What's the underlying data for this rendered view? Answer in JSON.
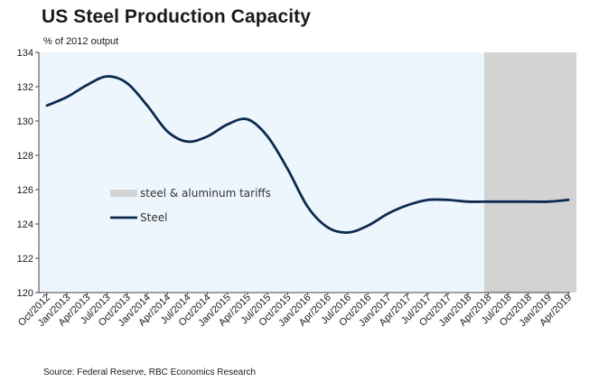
{
  "chart_data": {
    "type": "line",
    "title": "US Steel Production Capacity",
    "subtitle": "% of 2012 output",
    "source": "Source: Federal Reserve, RBC Economics Research",
    "xlabel": "",
    "ylabel": "% of 2012 output",
    "ylim": [
      120,
      134
    ],
    "yticks": [
      120,
      122,
      124,
      126,
      128,
      130,
      132,
      134
    ],
    "categories": [
      "Oct/2012",
      "Jan/2013",
      "Apr/2013",
      "Jul/2013",
      "Oct/2013",
      "Jan/2014",
      "Apr/2014",
      "Jul/2014",
      "Oct/2014",
      "Jan/2015",
      "Apr/2015",
      "Jul/2015",
      "Oct/2015",
      "Jan/2016",
      "Apr/2016",
      "Jul/2016",
      "Oct/2016",
      "Jan/2017",
      "Apr/2017",
      "Jul/2017",
      "Oct/2017",
      "Jan/2018",
      "Apr/2018",
      "Jul/2018",
      "Oct/2018",
      "Jan/2019",
      "Apr/2019"
    ],
    "series": [
      {
        "name": "Steel",
        "color": "#0d2a4f",
        "values": [
          130.9,
          131.4,
          132.1,
          132.6,
          132.2,
          130.9,
          129.4,
          128.8,
          129.1,
          129.8,
          130.1,
          129.1,
          127.2,
          125.0,
          123.8,
          123.5,
          123.9,
          124.6,
          125.1,
          125.4,
          125.4,
          125.3,
          125.3,
          125.3,
          125.3,
          125.3,
          125.4
        ]
      }
    ],
    "shaded_region": {
      "name": "steel & aluminum tariffs",
      "color": "#d3d3d3",
      "x_start": 21.8,
      "x_end": 26.4
    },
    "legend": {
      "placement": "center-left",
      "entries": [
        {
          "label": "steel & aluminum tariffs",
          "kind": "patch",
          "color": "#d3d3d3"
        },
        {
          "label": "Steel",
          "kind": "line",
          "color": "#0d2a4f"
        }
      ]
    },
    "plot_background": "#eef6fd",
    "grid": false
  }
}
